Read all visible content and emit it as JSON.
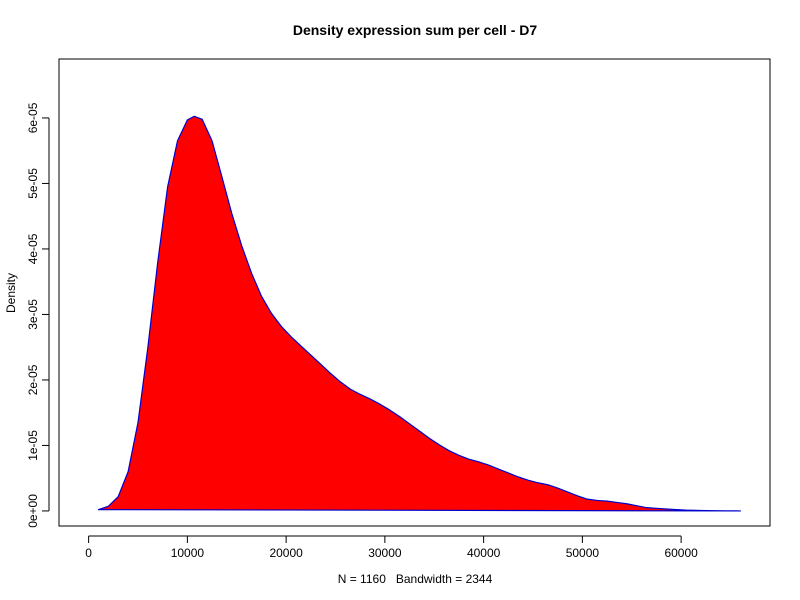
{
  "chart_data": {
    "type": "area",
    "title": "Density expression sum per cell - D7",
    "xlabel": "N = 1160   Bandwidth = 2344",
    "ylabel": "Density",
    "xlim": [
      -3000,
      69000
    ],
    "ylim": [
      -2.3e-06,
      6.9e-05
    ],
    "x_ticks": [
      0,
      10000,
      20000,
      30000,
      40000,
      50000,
      60000
    ],
    "x_tick_labels": [
      "0",
      "10000",
      "20000",
      "30000",
      "40000",
      "50000",
      "60000"
    ],
    "y_ticks": [
      0,
      1e-05,
      2e-05,
      3e-05,
      4e-05,
      5e-05,
      6e-05
    ],
    "y_tick_labels": [
      "0e+00",
      "1e-05",
      "2e-05",
      "3e-05",
      "4e-05",
      "5e-05",
      "6e-05"
    ],
    "grid": false,
    "fill_color": "#ff0000",
    "line_color": "#0000cc",
    "series": [
      {
        "x": [
          1000,
          2000,
          3000,
          4000,
          5000,
          6000,
          7000,
          8000,
          9000,
          10000,
          10700,
          11500,
          12500,
          13500,
          14500,
          15500,
          16500,
          17500,
          18500,
          19500,
          20500,
          21500,
          22500,
          23500,
          24500,
          25500,
          26500,
          27500,
          28500,
          29500,
          30500,
          31500,
          32500,
          33500,
          34500,
          35500,
          36500,
          37500,
          38500,
          39500,
          40500,
          41500,
          42500,
          43500,
          44500,
          45500,
          46500,
          47500,
          48500,
          49500,
          50500,
          51500,
          52500,
          53500,
          54500,
          55500,
          56500,
          57500,
          58500,
          59500,
          60500,
          61500,
          62500,
          63500,
          64500,
          65500,
          66000
        ],
        "y": [
          2e-07,
          7e-07,
          2.2e-06,
          6e-06,
          1.35e-05,
          2.5e-05,
          3.8e-05,
          4.95e-05,
          5.65e-05,
          5.97e-05,
          6.025e-05,
          5.98e-05,
          5.65e-05,
          5.1e-05,
          4.54e-05,
          4.05e-05,
          3.63e-05,
          3.28e-05,
          3.02e-05,
          2.82e-05,
          2.66e-05,
          2.52e-05,
          2.38e-05,
          2.24e-05,
          2.1e-05,
          1.97e-05,
          1.86e-05,
          1.78e-05,
          1.71e-05,
          1.63e-05,
          1.54e-05,
          1.44e-05,
          1.33e-05,
          1.22e-05,
          1.11e-05,
          1.01e-05,
          9.2e-06,
          8.5e-06,
          7.9e-06,
          7.5e-06,
          7e-06,
          6.4e-06,
          5.8e-06,
          5.2e-06,
          4.7e-06,
          4.3e-06,
          4e-06,
          3.5e-06,
          2.9e-06,
          2.3e-06,
          1.8e-06,
          1.6e-06,
          1.5e-06,
          1.3e-06,
          1.1e-06,
          8e-07,
          5e-07,
          4e-07,
          3e-07,
          2e-07,
          1.2e-07,
          8e-08,
          5e-08,
          3e-08,
          2e-08,
          1e-08,
          0.0
        ]
      }
    ]
  }
}
